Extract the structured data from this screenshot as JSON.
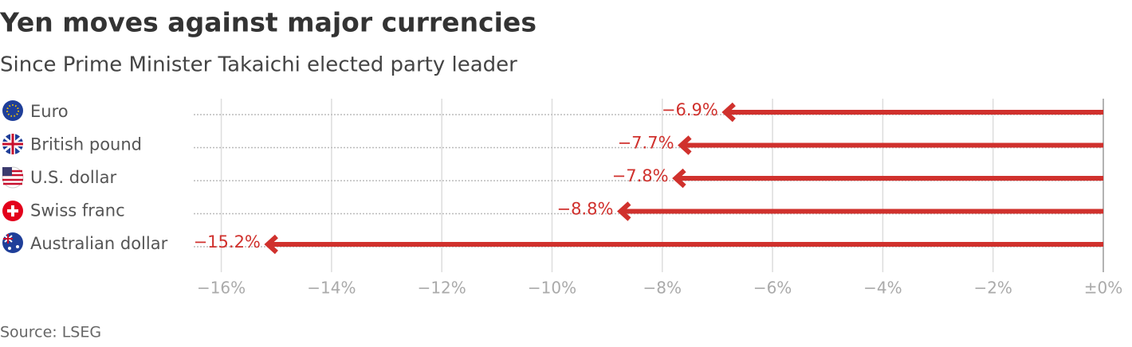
{
  "chart_data": {
    "type": "bar",
    "orientation": "horizontal",
    "title": "Yen moves against major currencies",
    "subtitle": "Since Prime Minister Takaichi elected party leader",
    "source": "Source: LSEG",
    "categories": [
      "Euro",
      "British pound",
      "U.S. dollar",
      "Swiss franc",
      "Australian dollar"
    ],
    "values": [
      -6.9,
      -7.7,
      -7.8,
      -8.8,
      -15.2
    ],
    "value_labels": [
      "−6.9%",
      "−7.7%",
      "−7.8%",
      "−8.8%",
      "−15.2%"
    ],
    "color": "#d0312d",
    "xlim": [
      -16.5,
      0
    ],
    "xticks": [
      {
        "value": -16,
        "label": "−16%"
      },
      {
        "value": -14,
        "label": "−14%"
      },
      {
        "value": -12,
        "label": "−12%"
      },
      {
        "value": -10,
        "label": "−10%"
      },
      {
        "value": -8,
        "label": "−8%"
      },
      {
        "value": -6,
        "label": "−6%"
      },
      {
        "value": -4,
        "label": "−4%"
      },
      {
        "value": -2,
        "label": "−2%"
      },
      {
        "value": 0,
        "label": "±0%"
      }
    ],
    "grid": true
  }
}
